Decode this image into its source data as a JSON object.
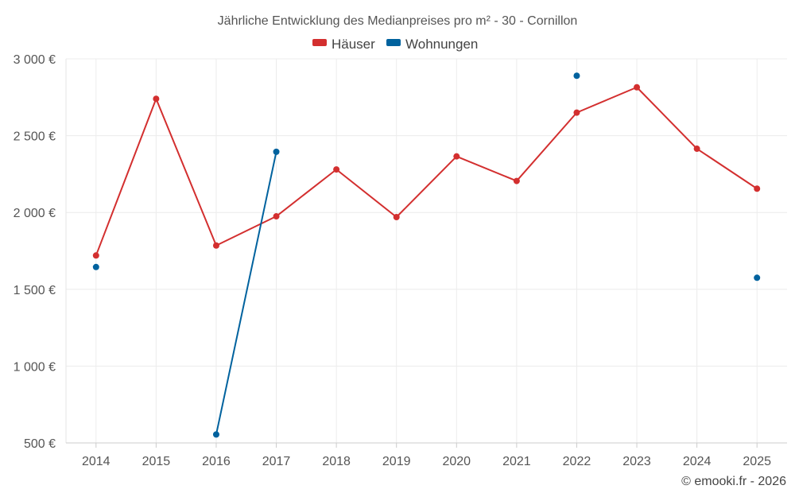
{
  "chart_data": {
    "type": "line",
    "title": "Jährliche Entwicklung des Medianpreises pro m² - 30 - Cornillon",
    "x": [
      "2014",
      "2015",
      "2016",
      "2017",
      "2018",
      "2019",
      "2020",
      "2021",
      "2022",
      "2023",
      "2024",
      "2025"
    ],
    "yticks": [
      "500 €",
      "1 000 €",
      "1 500 €",
      "2 000 €",
      "2 500 €",
      "3 000 €"
    ],
    "ylim": [
      500,
      3000
    ],
    "grid": true,
    "legend_position": "top-center",
    "series": [
      {
        "name": "Häuser",
        "color": "#d32f2f",
        "values": [
          1720,
          2740,
          1785,
          1975,
          2280,
          1970,
          2365,
          2205,
          2650,
          2815,
          2415,
          2155
        ]
      },
      {
        "name": "Wohnungen",
        "color": "#00629e",
        "values": [
          1645,
          null,
          555,
          2395,
          null,
          null,
          null,
          null,
          2890,
          null,
          null,
          1575
        ]
      }
    ]
  },
  "credit": "© emooki.fr - 2026"
}
